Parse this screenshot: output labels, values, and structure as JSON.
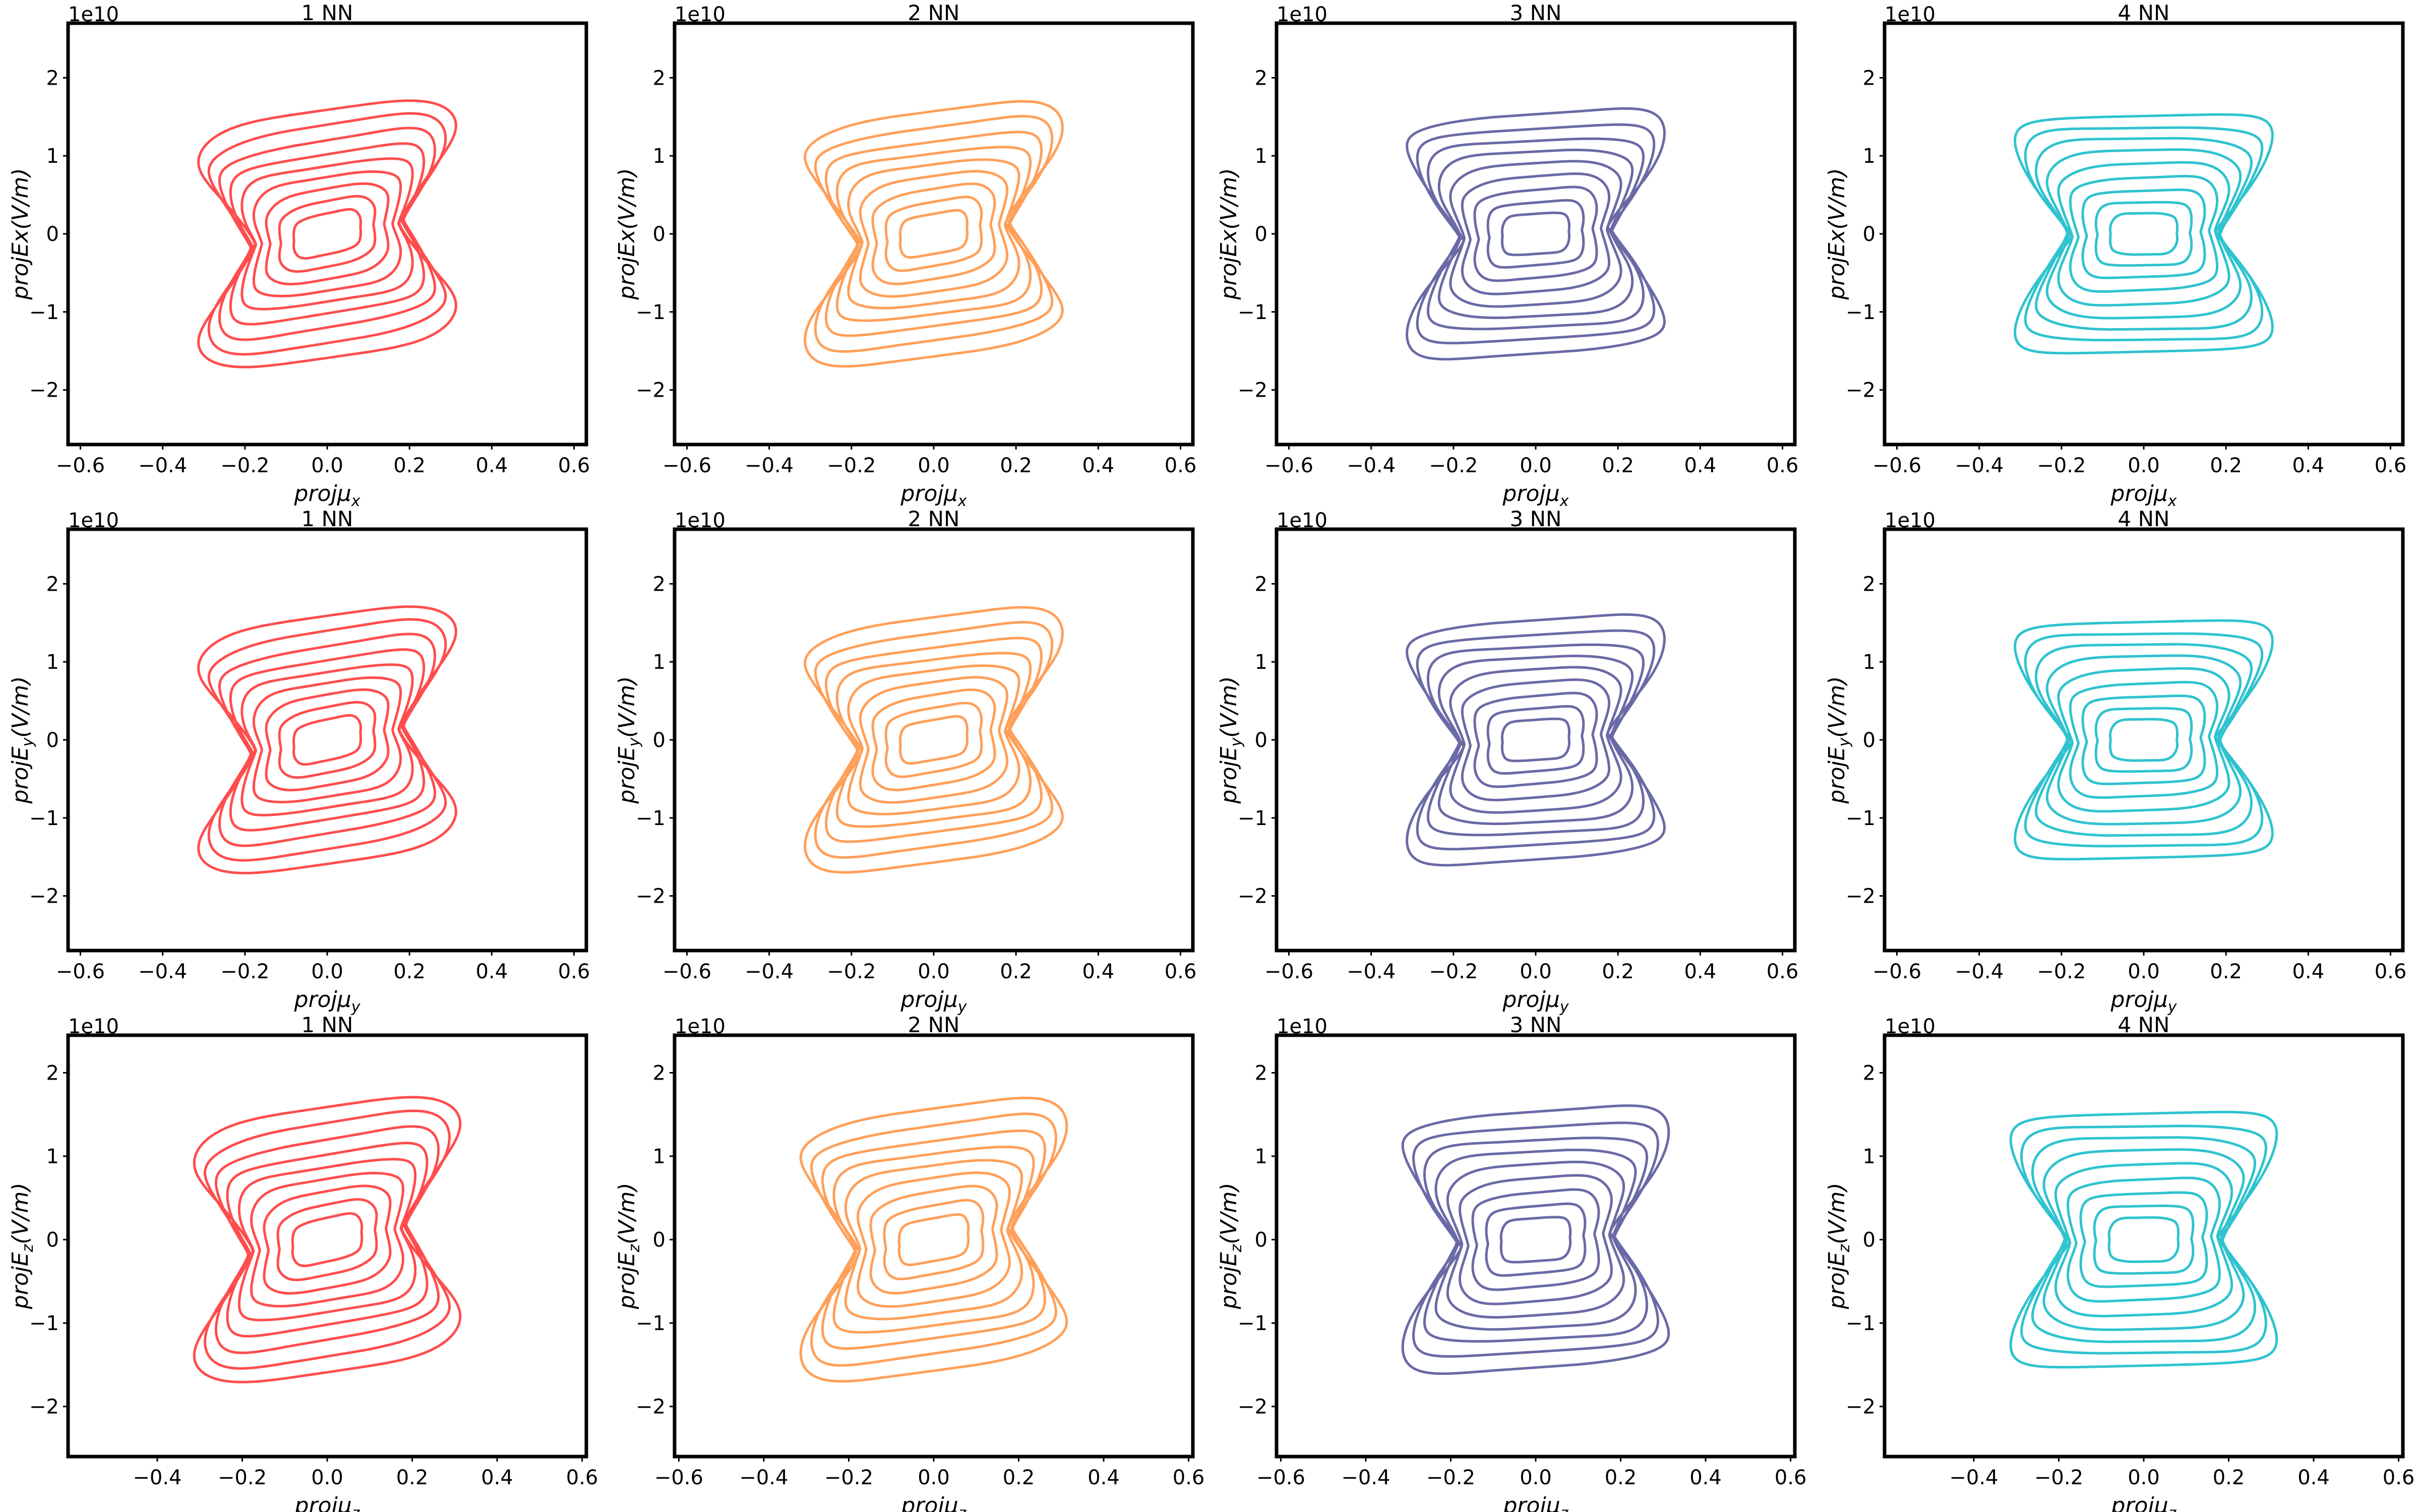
{
  "chart_data": {
    "type": "contour",
    "layout": "3 rows x 4 columns grid of 2D KDE contour plots",
    "offset_text": "1e10",
    "columns": [
      {
        "title": "1 NN",
        "color": "#ff4d4d",
        "correlation": 2.0
      },
      {
        "title": "2 NN",
        "color": "#ffa05a",
        "correlation": 1.7
      },
      {
        "title": "3 NN",
        "color": "#6a6aa6",
        "correlation": 0.8
      },
      {
        "title": "4 NN",
        "color": "#2fc3cf",
        "correlation": 0.3
      }
    ],
    "rows": [
      {
        "xlabel": {
          "base": "projμ",
          "sub": "x"
        },
        "ylabel": {
          "base": "projEx(V/m)",
          "sub": "",
          "tail": ""
        },
        "xlim": [
          -0.63,
          0.63
        ],
        "ylim": [
          -2.7,
          2.7
        ],
        "xticks": [
          -0.6,
          -0.4,
          -0.2,
          0.0,
          0.2,
          0.4,
          0.6
        ],
        "xticklabels": [
          "−0.6",
          "−0.4",
          "−0.2",
          "0.0",
          "0.2",
          "0.4",
          "0.6"
        ],
        "yticks": [
          -2,
          -1,
          0,
          1,
          2
        ],
        "yticklabels": [
          "−2",
          "−1",
          "0",
          "1",
          "2"
        ]
      },
      {
        "xlabel": {
          "base": "projμ",
          "sub": "y"
        },
        "ylabel": {
          "base": "projE",
          "sub": "y",
          "tail": "(V/m)"
        },
        "xlim": [
          -0.63,
          0.63
        ],
        "ylim": [
          -2.7,
          2.7
        ],
        "xticks": [
          -0.6,
          -0.4,
          -0.2,
          0.0,
          0.2,
          0.4,
          0.6
        ],
        "xticklabels": [
          "−0.6",
          "−0.4",
          "−0.2",
          "0.0",
          "0.2",
          "0.4",
          "0.6"
        ],
        "yticks": [
          -2,
          -1,
          0,
          1,
          2
        ],
        "yticklabels": [
          "−2",
          "−1",
          "0",
          "1",
          "2"
        ]
      },
      {
        "xlabel": {
          "base": "projμ",
          "sub": "z"
        },
        "ylabel": {
          "base": "projE",
          "sub": "z",
          "tail": "(V/m)"
        },
        "xlim": [
          -0.61,
          0.61
        ],
        "ylim": [
          -2.6,
          2.45
        ],
        "xticks": [
          -0.6,
          -0.4,
          -0.2,
          0.0,
          0.2,
          0.4,
          0.6
        ],
        "xticklabels": [
          "−0.6",
          "−0.4",
          "−0.2",
          "0.0",
          "0.2",
          "0.4",
          "0.6"
        ],
        "hidden_first_xtick_columns": [
          0,
          3
        ],
        "yticks": [
          -2,
          -1,
          0,
          1,
          2
        ],
        "yticklabels": [
          "−2",
          "−1",
          "0",
          "1",
          "2"
        ]
      }
    ],
    "contour_levels": 9,
    "extent": {
      "x_halfwidth": 0.46,
      "y_halfheight_e10": 1.55
    }
  }
}
